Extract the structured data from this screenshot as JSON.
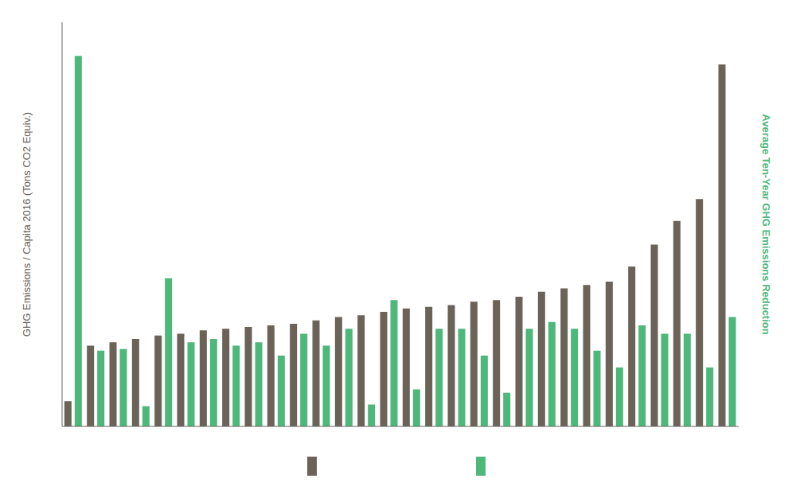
{
  "chart_data": {
    "type": "bar",
    "ylabel": "GHG Emissions / Capita 2016 (Tons CO2 Equiv.)",
    "y2label": "Average Ten-Year GHG Emissions Reduction",
    "categories": [
      null,
      null,
      null,
      null,
      null,
      null,
      null,
      null,
      null,
      null,
      null,
      null,
      null,
      null,
      null,
      null,
      null,
      null,
      null,
      null,
      null,
      null,
      null,
      null,
      null,
      null,
      null,
      null,
      null,
      null
    ],
    "series": [
      {
        "color": "#6b6258",
        "values": [
          1.5,
          4.8,
          5.0,
          5.2,
          5.4,
          5.5,
          5.7,
          5.8,
          5.9,
          6.0,
          6.1,
          6.3,
          6.5,
          6.6,
          6.8,
          7.0,
          7.1,
          7.2,
          7.4,
          7.5,
          7.7,
          8.0,
          8.2,
          8.4,
          8.6,
          9.5,
          10.8,
          12.2,
          13.5,
          21.5
        ]
      },
      {
        "color": "#4db87a",
        "values": [
          22.0,
          4.5,
          4.6,
          1.2,
          8.8,
          5.0,
          5.2,
          4.8,
          5.0,
          4.2,
          5.5,
          4.8,
          5.8,
          1.3,
          7.5,
          2.2,
          5.8,
          5.8,
          4.2,
          2.0,
          5.8,
          6.2,
          5.8,
          4.5,
          3.5,
          6.0,
          5.5,
          5.5,
          3.5,
          6.5
        ]
      }
    ],
    "ylim": [
      0,
      24
    ],
    "tick_labels": false,
    "grid": false,
    "legend": "bottom"
  }
}
